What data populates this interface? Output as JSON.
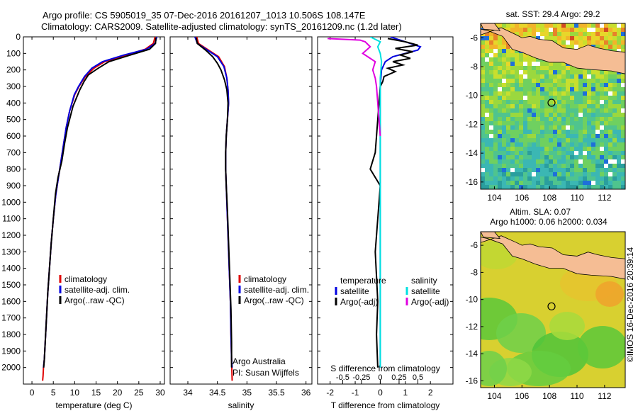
{
  "header": {
    "title_line1": "Argo profile: CS 5905019_35 07-Dec-2016 20161207_1013 10.506S 108.147E",
    "title_line2": "Climatology: CARS2009. Satellite-adjusted climatology: synTS_20161209.nc (1.2d later)"
  },
  "chart_data": [
    {
      "type": "line",
      "panel": "temperature",
      "xlabel": "temperature (deg C)",
      "ylabel": "",
      "xlim": [
        -2,
        31
      ],
      "ylim": [
        2100,
        0
      ],
      "xticks": [
        0,
        5,
        10,
        15,
        20,
        25,
        30
      ],
      "yticks": [
        0,
        100,
        200,
        300,
        400,
        500,
        600,
        700,
        800,
        900,
        1000,
        1100,
        1200,
        1300,
        1400,
        1500,
        1600,
        1700,
        1800,
        1900,
        2000
      ],
      "legend": {
        "placement": "bottom-left",
        "entries": [
          {
            "label": "climatology",
            "color": "#e00000"
          },
          {
            "label": "satellite-adj. clim.",
            "color": "#0000e0"
          },
          {
            "label": "Argo(..raw -QC)",
            "color": "#000000"
          }
        ]
      },
      "series": [
        {
          "key": "climatology",
          "color": "#e00000",
          "x": [
            28.8,
            28.4,
            26.5,
            22.0,
            17.0,
            14.5,
            12.5,
            11.0,
            10.0,
            8.8,
            8.0,
            7.4,
            6.8,
            6.2,
            5.6,
            5.0,
            4.5,
            4.1,
            3.7,
            3.4,
            3.1,
            2.9,
            2.7,
            2.6,
            2.5
          ],
          "y": [
            0,
            40,
            75,
            110,
            150,
            190,
            240,
            300,
            350,
            450,
            550,
            650,
            750,
            850,
            950,
            1100,
            1250,
            1400,
            1550,
            1700,
            1850,
            1950,
            2000,
            2050,
            2080
          ]
        },
        {
          "key": "satellite-adj. clim.",
          "color": "#0000e0",
          "x": [
            29.2,
            28.8,
            26.8,
            21.5,
            16.5,
            14.0,
            12.3,
            10.9,
            9.9,
            8.8,
            8.0,
            7.4,
            6.8,
            6.2,
            5.6,
            5.0,
            4.5,
            4.1,
            3.7,
            3.4,
            3.1,
            2.9,
            2.7
          ],
          "y": [
            0,
            40,
            75,
            110,
            150,
            190,
            240,
            300,
            350,
            450,
            550,
            650,
            750,
            850,
            950,
            1100,
            1250,
            1400,
            1550,
            1700,
            1850,
            1950,
            2000
          ]
        },
        {
          "key": "Argo(..raw -QC)",
          "color": "#000000",
          "x": [
            29.0,
            28.9,
            27.5,
            23.0,
            18.0,
            15.5,
            13.2,
            12.2,
            11.2,
            9.6,
            8.3,
            7.6,
            7.0,
            6.1,
            5.5,
            5.0,
            4.5,
            4.1,
            3.7,
            3.4,
            3.1,
            2.9,
            2.75
          ],
          "y": [
            5,
            40,
            75,
            110,
            150,
            190,
            230,
            270,
            320,
            420,
            550,
            650,
            750,
            850,
            950,
            1100,
            1250,
            1400,
            1550,
            1700,
            1850,
            1950,
            2000
          ]
        }
      ]
    },
    {
      "type": "line",
      "panel": "salinity",
      "xlabel": "salinity",
      "ylabel": "",
      "xlim": [
        33.7,
        36.1
      ],
      "ylim": [
        2100,
        0
      ],
      "xticks": [
        34,
        34.5,
        35,
        35.5,
        36
      ],
      "legend": {
        "placement": "bottom-right",
        "entries": [
          {
            "label": "climatology",
            "color": "#e00000"
          },
          {
            "label": "satellite-adj. clim.",
            "color": "#0000e0"
          },
          {
            "label": "Argo(..raw -QC)",
            "color": "#000000"
          }
        ]
      },
      "annotation": [
        "Argo Australia",
        "PI: Susan Wijffels"
      ],
      "series": [
        {
          "key": "climatology",
          "color": "#e00000",
          "x": [
            34.15,
            34.18,
            34.35,
            34.52,
            34.62,
            34.66,
            34.68,
            34.69,
            34.67,
            34.65,
            34.64,
            34.64,
            34.65,
            34.66,
            34.68,
            34.7,
            34.72,
            34.73,
            34.74,
            34.75
          ],
          "y": [
            0,
            40,
            80,
            120,
            180,
            250,
            320,
            400,
            500,
            600,
            700,
            800,
            900,
            1000,
            1200,
            1400,
            1600,
            1800,
            1950,
            2080
          ]
        },
        {
          "key": "satellite-adj. clim.",
          "color": "#0000e0",
          "x": [
            34.12,
            34.16,
            34.33,
            34.5,
            34.61,
            34.66,
            34.68,
            34.69,
            34.67,
            34.65,
            34.64,
            34.64,
            34.65,
            34.66,
            34.68,
            34.7,
            34.72,
            34.73,
            34.74,
            34.75
          ],
          "y": [
            0,
            40,
            80,
            120,
            180,
            250,
            320,
            400,
            500,
            600,
            700,
            800,
            900,
            1000,
            1200,
            1400,
            1600,
            1800,
            1950,
            2000
          ]
        },
        {
          "key": "Argo(..raw -QC)",
          "color": "#000000",
          "x": [
            34.14,
            34.16,
            34.3,
            34.42,
            34.5,
            34.56,
            34.62,
            34.66,
            34.68,
            34.67,
            34.65,
            34.64,
            34.64,
            34.65,
            34.67,
            34.69,
            34.71,
            34.73,
            34.74,
            34.74
          ],
          "y": [
            5,
            40,
            80,
            120,
            160,
            200,
            260,
            320,
            400,
            500,
            600,
            700,
            800,
            900,
            1050,
            1250,
            1450,
            1650,
            1850,
            2000
          ]
        }
      ]
    },
    {
      "type": "line",
      "panel": "difference",
      "xlabel": "T difference from climatology",
      "xlabel_top": "S difference from climatology",
      "ylabel": "",
      "xlim": [
        -2.5,
        2.9
      ],
      "ylim": [
        2100,
        0
      ],
      "xticks": [
        "-2",
        "-1",
        "0",
        "1",
        "2"
      ],
      "xticks_secondary": [
        "-0.5",
        "-0.25",
        "0",
        "0.25",
        "0.5"
      ],
      "legend": {
        "placement": "bottom",
        "entries": [
          {
            "label": "temperature",
            "color": null
          },
          {
            "label": "satellite",
            "color": "#0000e0"
          },
          {
            "label": "Argo(-adj)",
            "color": "#000000"
          },
          {
            "label": "salinity",
            "color": null
          },
          {
            "label": "satellite",
            "color": "#00e0e0"
          },
          {
            "label": "Argo(-adj)",
            "color": "#e000e0"
          }
        ]
      },
      "series": [
        {
          "key": "T satellite",
          "color": "#0000e0",
          "x": [
            0.4,
            1.2,
            1.6,
            1.5,
            1.0,
            0.5,
            0.2,
            0.05,
            0,
            0,
            0,
            0,
            0
          ],
          "y": [
            0,
            40,
            60,
            80,
            100,
            120,
            150,
            200,
            300,
            400,
            800,
            1500,
            2000
          ]
        },
        {
          "key": "T Argo(-adj)",
          "color": "#000000",
          "x": [
            0.3,
            1.0,
            1.5,
            0.6,
            1.3,
            0.8,
            1.2,
            0.5,
            0.9,
            0.3,
            0.6,
            0.15,
            0.1,
            0,
            -0.05,
            -0.2,
            -0.4,
            0,
            -0.1,
            -0.2,
            -0.1,
            -0.15,
            -0.1
          ],
          "y": [
            10,
            30,
            50,
            70,
            90,
            110,
            130,
            150,
            170,
            190,
            210,
            240,
            270,
            300,
            400,
            700,
            800,
            900,
            1100,
            1300,
            1600,
            1800,
            2000
          ]
        },
        {
          "key": "S satellite",
          "color": "#00e0e0",
          "x": [
            -0.4,
            0,
            -0.1,
            0,
            0.05,
            0,
            0,
            0,
            0
          ],
          "y": [
            0,
            30,
            60,
            100,
            150,
            250,
            500,
            1000,
            2000
          ]
        },
        {
          "key": "S Argo(-adj)",
          "color": "#e000e0",
          "x": [
            -2.1,
            -0.8,
            -0.6,
            -0.4,
            -0.7,
            -0.2,
            -0.3,
            -0.2,
            -0.15,
            -0.1,
            -0.05,
            0
          ],
          "y": [
            10,
            20,
            30,
            60,
            100,
            150,
            200,
            250,
            300,
            400,
            500,
            600
          ]
        }
      ]
    },
    {
      "type": "heatmap",
      "panel": "sst-map",
      "title": "sat. SST: 29.4  Argo: 29.2",
      "xlim": [
        103,
        113.5
      ],
      "ylim": [
        -16.5,
        -5
      ],
      "xticks": [
        104,
        106,
        108,
        110,
        112
      ],
      "yticks": [
        -6,
        -8,
        -10,
        -12,
        -14,
        -16
      ],
      "marker": {
        "lon": 108.147,
        "lat": -10.506
      }
    },
    {
      "type": "heatmap",
      "panel": "sla-map",
      "title_line1": "Altim. SLA: 0.07",
      "title_line2": "Argo h1000: 0.06  h2000: 0.034",
      "xlim": [
        103,
        113.5
      ],
      "ylim": [
        -16.5,
        -5
      ],
      "xticks": [
        104,
        106,
        108,
        110,
        112
      ],
      "yticks": [
        -6,
        -8,
        -10,
        -12,
        -14,
        -16
      ],
      "marker": {
        "lon": 108.147,
        "lat": -10.506
      }
    }
  ],
  "credit": "©IMOS 16-Dec-2016 20:39:14"
}
